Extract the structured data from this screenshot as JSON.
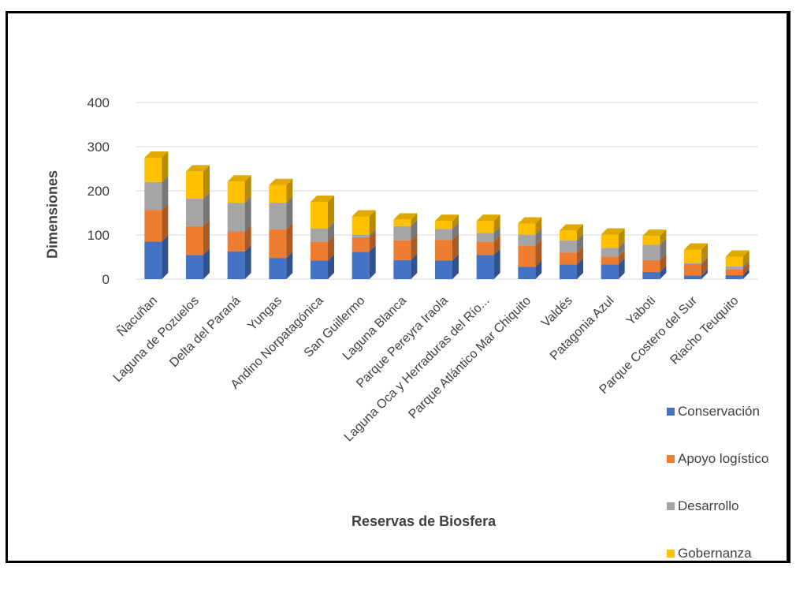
{
  "chart_data": {
    "type": "bar",
    "stacked": true,
    "xlabel": "Reservas de Biosfera",
    "ylabel": "Dimensiones",
    "ylim": [
      0,
      400
    ],
    "yticks": [
      "0",
      "100",
      "200",
      "300",
      "400"
    ],
    "grid": true,
    "legend_position": "bottom-right",
    "categories": [
      "Ñacuñan",
      "Laguna de Pozuelos",
      "Delta del Paraná",
      "Yungas",
      "Andino Norpatagónica",
      "San Guillermo",
      "Laguna Blanca",
      "Parque Pereyra Iraola",
      "Laguna Oca y Herraduras del Río...",
      "Parque Atlántico Mar Chiquito",
      "Valdés",
      "Patagonia Azul",
      "Yaboti",
      "Parque Costero del Sur",
      "Riacho Teuquito"
    ],
    "series": [
      {
        "name": "Conservación",
        "color": "#4472C4",
        "values": [
          85,
          55,
          63,
          48,
          42,
          62,
          43,
          42,
          55,
          28,
          33,
          33,
          16,
          8,
          9
        ]
      },
      {
        "name": "Apoyo logístico",
        "color": "#ED7D31",
        "values": [
          72,
          65,
          45,
          65,
          43,
          33,
          45,
          47,
          30,
          48,
          27,
          18,
          27,
          26,
          14
        ]
      },
      {
        "name": "Desarrollo",
        "color": "#A5A5A5",
        "values": [
          63,
          62,
          65,
          60,
          30,
          5,
          32,
          25,
          20,
          25,
          28,
          20,
          35,
          3,
          6
        ]
      },
      {
        "name": "Gobernanza",
        "color": "#FFC000",
        "values": [
          55,
          62,
          48,
          40,
          60,
          42,
          15,
          18,
          27,
          25,
          22,
          30,
          20,
          30,
          22
        ]
      }
    ]
  }
}
